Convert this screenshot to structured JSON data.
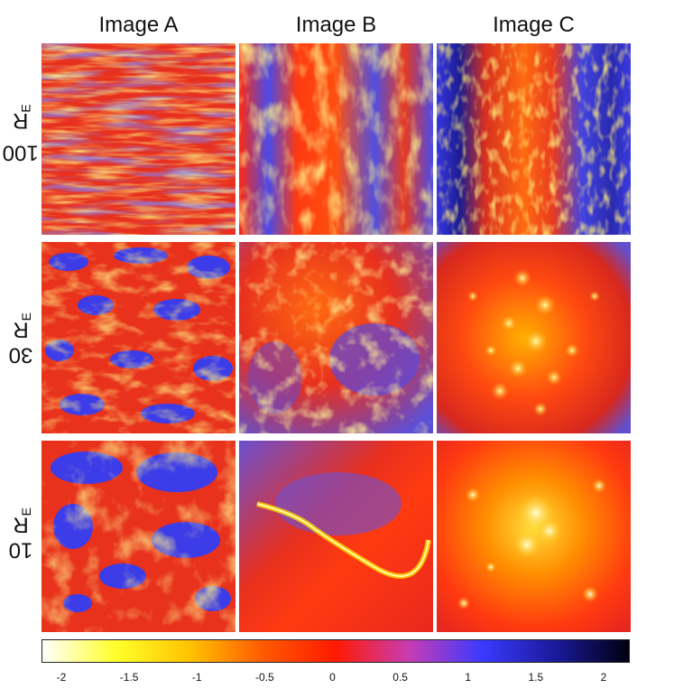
{
  "columns": [
    "Image A",
    "Image B",
    "Image C"
  ],
  "rows": [
    {
      "value": "100",
      "unit": "R",
      "sub": "E"
    },
    {
      "value": "30",
      "unit": "R",
      "sub": "E"
    },
    {
      "value": "10",
      "unit": "R",
      "sub": "E"
    }
  ],
  "colorbar": {
    "ticks": [
      "-2",
      "-1.5",
      "-1",
      "-0.5",
      "0",
      "0.5",
      "1",
      "1.5",
      "2"
    ],
    "stops": [
      "#ffffff",
      "#ffff2a",
      "#ffc400",
      "#ff5a00",
      "#ff1a00",
      "#c83cb4",
      "#3a3aff",
      "#1a1a9a",
      "#000010"
    ]
  }
}
